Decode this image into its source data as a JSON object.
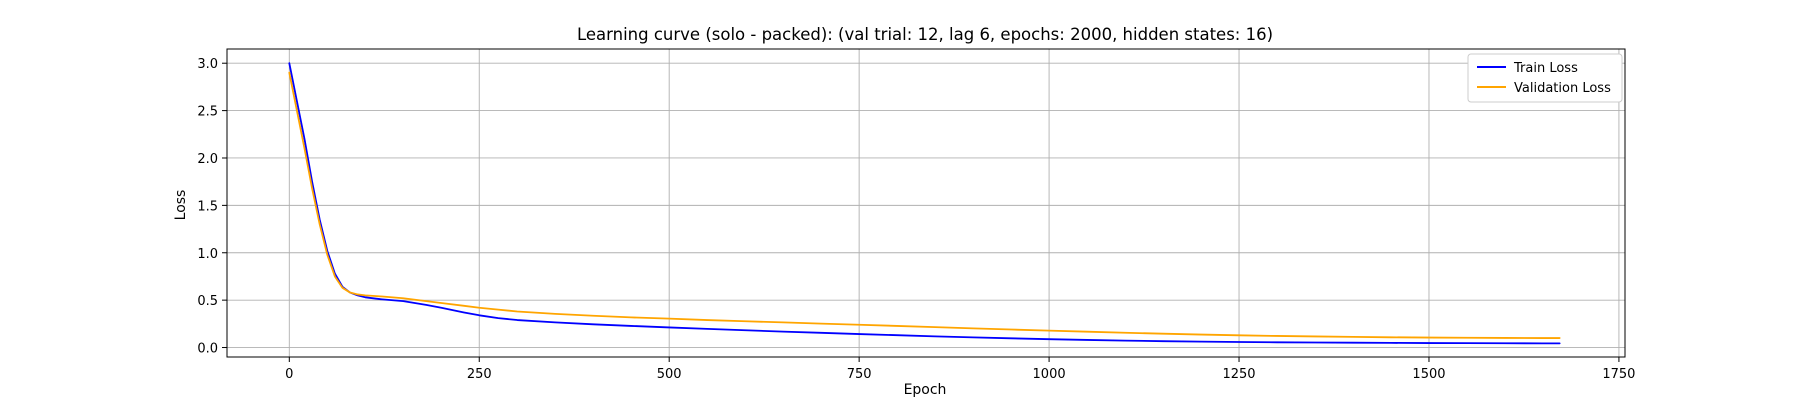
{
  "chart_data": {
    "type": "line",
    "title": "Learning curve (solo - packed): (val trial: 12, lag 6, epochs: 2000, hidden states: 16)",
    "xlabel": "Epoch",
    "ylabel": "Loss",
    "xlim": [
      -82,
      1758
    ],
    "ylim": [
      -0.1,
      3.15
    ],
    "xticks": [
      0,
      250,
      500,
      750,
      1000,
      1250,
      1500,
      1750
    ],
    "yticks": [
      0.0,
      0.5,
      1.0,
      1.5,
      2.0,
      2.5,
      3.0
    ],
    "xtick_labels": [
      "0",
      "250",
      "500",
      "750",
      "1000",
      "1250",
      "1500",
      "1750"
    ],
    "ytick_labels": [
      "0.0",
      "0.5",
      "1.0",
      "1.5",
      "2.0",
      "2.5",
      "3.0"
    ],
    "grid": true,
    "legend_position": "top-right",
    "series": [
      {
        "name": "Train Loss",
        "color": "#0000ff",
        "x": [
          0,
          10,
          20,
          30,
          40,
          50,
          60,
          70,
          80,
          90,
          100,
          120,
          150,
          180,
          200,
          230,
          250,
          275,
          300,
          350,
          400,
          450,
          500,
          550,
          600,
          650,
          700,
          750,
          800,
          850,
          900,
          950,
          1000,
          1050,
          1100,
          1150,
          1200,
          1250,
          1300,
          1350,
          1400,
          1450,
          1500,
          1550,
          1600,
          1650,
          1672
        ],
        "y": [
          3.0,
          2.6,
          2.2,
          1.75,
          1.35,
          1.02,
          0.78,
          0.64,
          0.58,
          0.55,
          0.53,
          0.51,
          0.49,
          0.45,
          0.42,
          0.37,
          0.34,
          0.31,
          0.29,
          0.265,
          0.245,
          0.228,
          0.212,
          0.197,
          0.182,
          0.168,
          0.155,
          0.142,
          0.13,
          0.118,
          0.107,
          0.097,
          0.088,
          0.08,
          0.073,
          0.067,
          0.062,
          0.058,
          0.055,
          0.053,
          0.051,
          0.049,
          0.047,
          0.046,
          0.045,
          0.044,
          0.044
        ]
      },
      {
        "name": "Validation Loss",
        "color": "#ffa500",
        "x": [
          0,
          10,
          20,
          30,
          40,
          50,
          60,
          70,
          80,
          90,
          100,
          120,
          150,
          180,
          200,
          230,
          250,
          275,
          300,
          350,
          400,
          450,
          500,
          550,
          600,
          650,
          700,
          750,
          800,
          850,
          900,
          950,
          1000,
          1050,
          1100,
          1150,
          1200,
          1250,
          1300,
          1350,
          1400,
          1450,
          1500,
          1550,
          1600,
          1650,
          1672
        ],
        "y": [
          2.9,
          2.5,
          2.1,
          1.68,
          1.3,
          0.98,
          0.75,
          0.63,
          0.58,
          0.56,
          0.55,
          0.54,
          0.52,
          0.49,
          0.47,
          0.44,
          0.42,
          0.4,
          0.38,
          0.355,
          0.335,
          0.318,
          0.305,
          0.29,
          0.277,
          0.265,
          0.252,
          0.24,
          0.228,
          0.215,
          0.202,
          0.19,
          0.178,
          0.167,
          0.156,
          0.146,
          0.137,
          0.129,
          0.122,
          0.117,
          0.112,
          0.108,
          0.105,
          0.103,
          0.101,
          0.1,
          0.1
        ]
      }
    ]
  }
}
